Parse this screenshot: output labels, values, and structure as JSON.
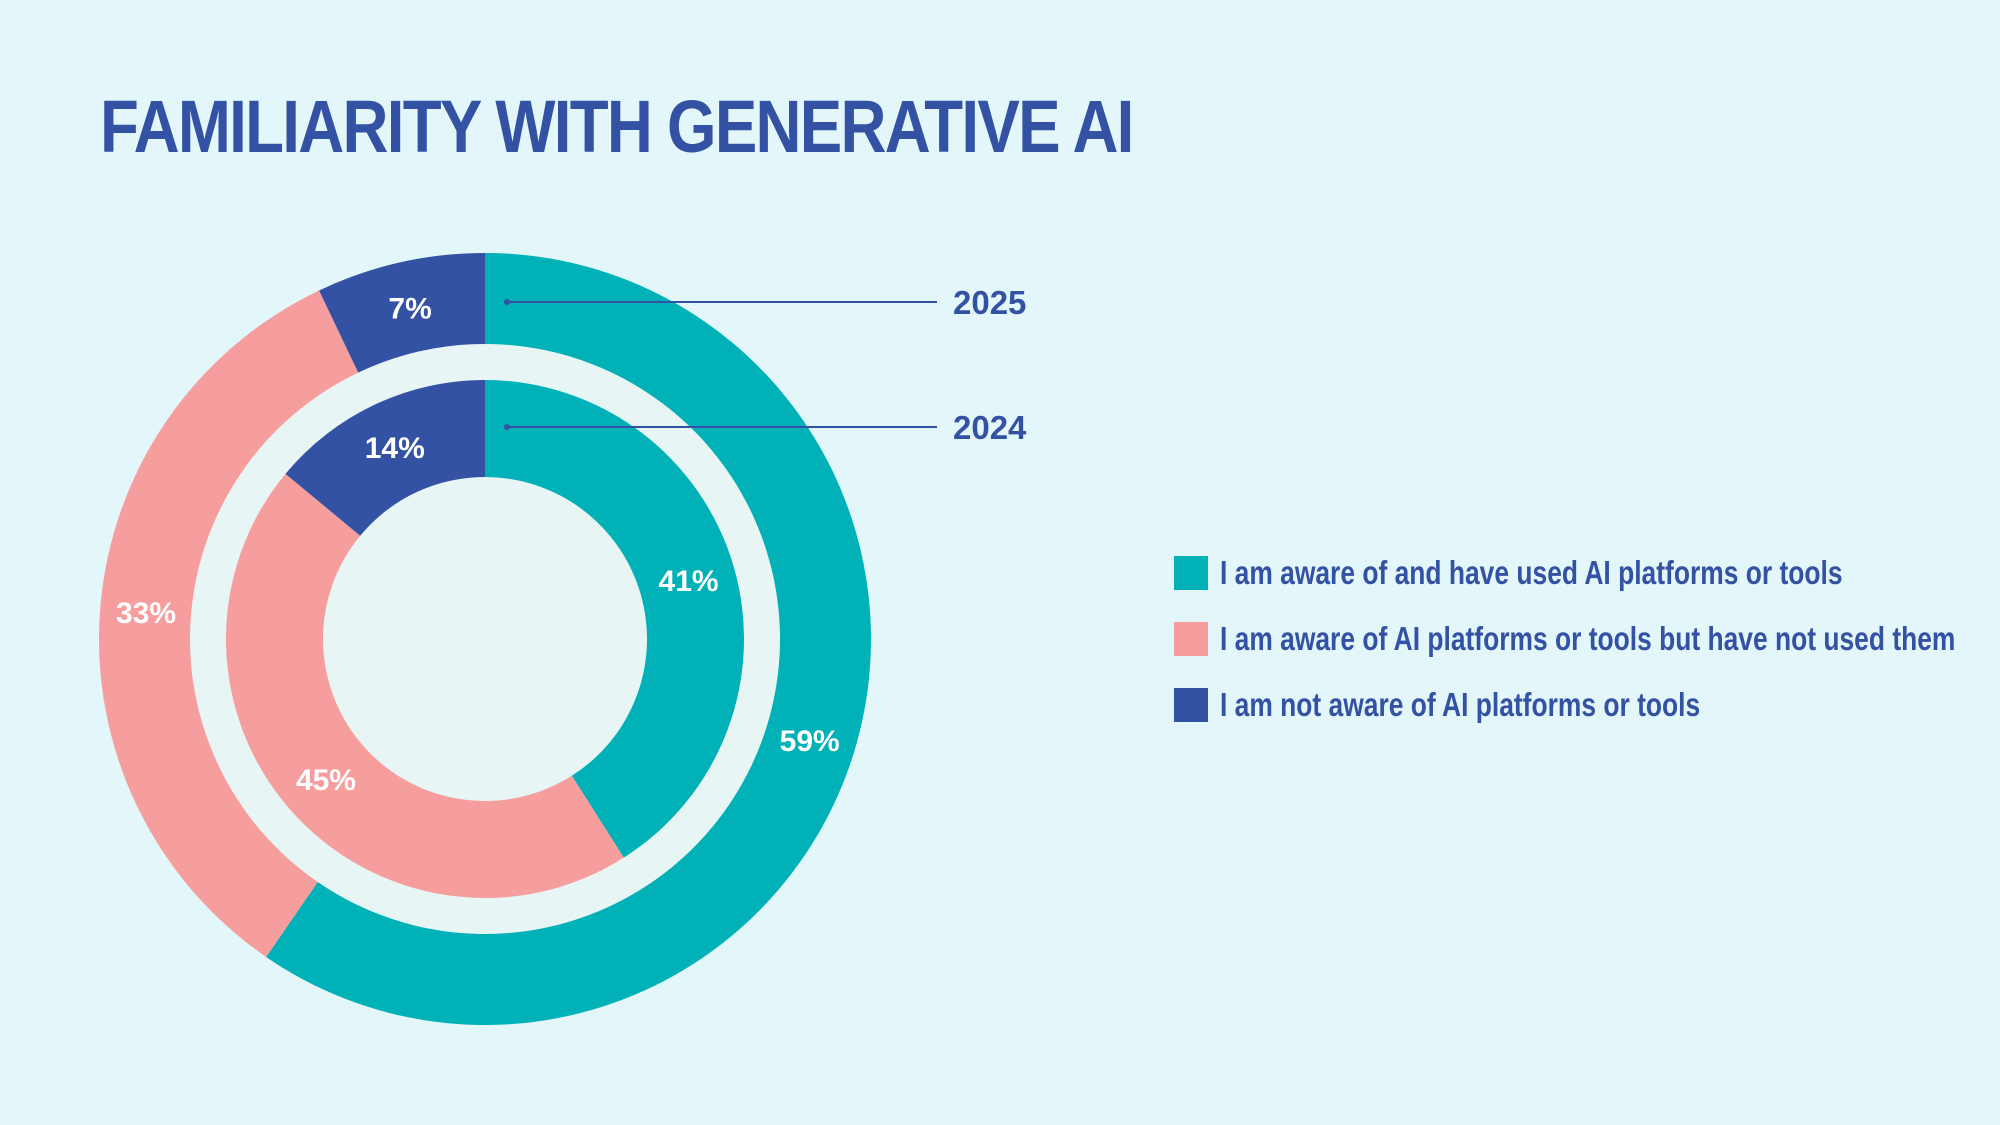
{
  "title": "FAMILIARITY WITH GENERATIVE AI",
  "colors": {
    "background": "#e3f6f9",
    "hole": "#e8f5f5",
    "title": "#3452a4",
    "used": "#00b2b8",
    "aware_not_used": "#f69d9d",
    "not_aware": "#3452a4"
  },
  "chart_data": {
    "type": "donut",
    "categories": [
      "I am aware of and have used AI platforms or tools",
      "I am aware of AI platforms or tools but have not used them",
      "I am not aware of AI platforms or tools"
    ],
    "series": [
      {
        "name": "2025",
        "ring": "outer",
        "values": [
          59,
          33,
          7
        ],
        "labels": [
          "59%",
          "33%",
          "7%"
        ]
      },
      {
        "name": "2024",
        "ring": "inner",
        "values": [
          41,
          45,
          14
        ],
        "labels": [
          "41%",
          "45%",
          "14%"
        ]
      }
    ],
    "unit": "%"
  }
}
